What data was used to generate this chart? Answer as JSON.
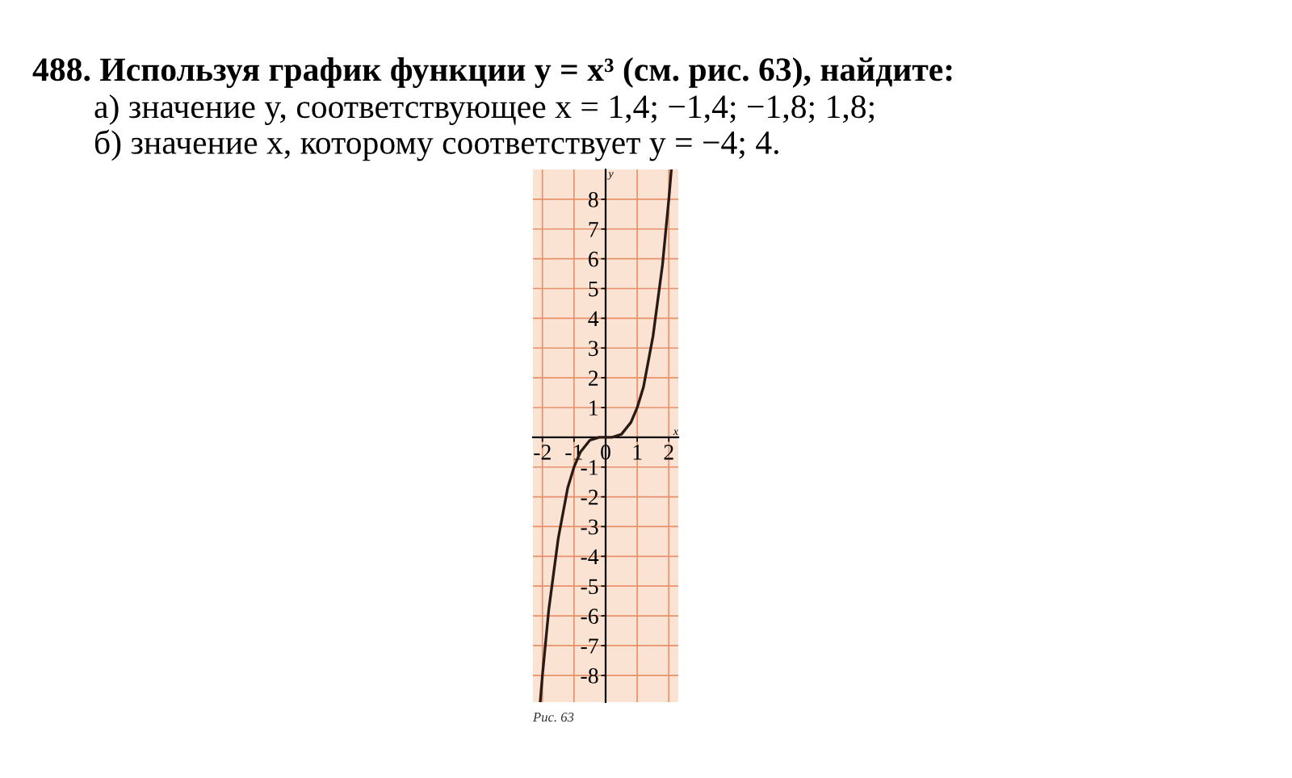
{
  "chart_data": {
    "type": "line",
    "title": "488. Используя график функции y = x³ (см. рис. 63), найдите:",
    "annotations": [
      "а) значение y, соответствующее x = 1,4; −1,4; −1,8; 1,8;",
      "б) значение x, которому соответствует y = −4; 4.",
      "Рис. 63"
    ],
    "xlabel": "x",
    "ylabel": "y",
    "x": [
      -2.07,
      -2,
      -1.8,
      -1.5,
      -1.2,
      -1,
      -0.8,
      -0.5,
      -0.2,
      0,
      0.2,
      0.5,
      0.8,
      1,
      1.2,
      1.5,
      1.8,
      2,
      2.08
    ],
    "series": [
      {
        "color": "#2a1a14",
        "values": [
          -8.9,
          -8,
          -5.8,
          -3.4,
          -1.7,
          -1,
          -0.5,
          -0.1,
          0,
          0,
          0,
          0.1,
          0.5,
          1,
          1.7,
          3.4,
          5.8,
          8,
          9
        ]
      }
    ],
    "xlim": [
      -2.3,
      2.3
    ],
    "ylim": [
      -8.9,
      9
    ],
    "xticks": [
      -2,
      -1,
      0,
      1,
      2
    ],
    "yticks": [
      -8,
      -7,
      -6,
      -5,
      -4,
      -3,
      -2,
      -1,
      1,
      2,
      3,
      4,
      5,
      6,
      7,
      8
    ],
    "grid": true,
    "marker": "none",
    "line_style": "solid"
  }
}
